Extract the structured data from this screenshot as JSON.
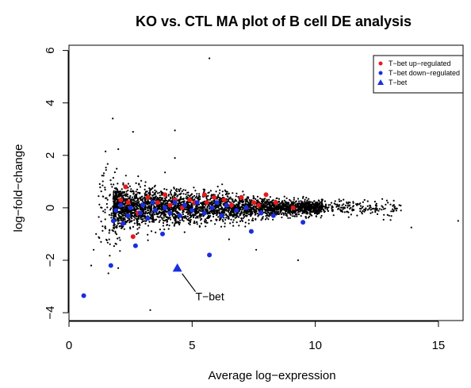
{
  "chart_data": {
    "type": "scatter",
    "title": "KO vs. CTL MA plot of B cell DE analysis",
    "xlabel": "Average log−expression",
    "ylabel": "log−fold−change",
    "xlim": [
      0,
      16
    ],
    "ylim": [
      -4.3,
      6.2
    ],
    "xticks": [
      0,
      5,
      10,
      15
    ],
    "yticks": [
      -4,
      -2,
      0,
      2,
      4,
      6
    ],
    "grid": false,
    "legend_position": "top-right",
    "legend": [
      {
        "label": "T−bet up−regulated",
        "color": "#e8191a",
        "marker": "circle"
      },
      {
        "label": "T−bet down−regulated",
        "color": "#1a2ee0",
        "marker": "circle"
      },
      {
        "label": "T−bet",
        "color": "#1a2ee0",
        "marker": "triangle"
      }
    ],
    "annotation": {
      "text": "T−bet",
      "x": 4.4,
      "y": -2.3,
      "text_x": 5.2,
      "text_y": -3.5
    },
    "background_points_note": "dense cloud of black points for all genes",
    "background_outliers": [
      [
        0.6,
        -3.4
      ],
      [
        3.3,
        -3.9
      ],
      [
        4.3,
        2.95
      ],
      [
        4.3,
        1.9
      ],
      [
        5.7,
        5.7
      ],
      [
        2.6,
        2.9
      ],
      [
        1.6,
        -2.5
      ],
      [
        1.0,
        -1.6
      ],
      [
        0.9,
        -2.2
      ],
      [
        1.3,
        -1.3
      ],
      [
        12.0,
        0.3
      ],
      [
        13.9,
        -0.75
      ],
      [
        15.8,
        -0.5
      ],
      [
        13.0,
        -0.3
      ],
      [
        7.6,
        -1.6
      ],
      [
        9.3,
        -2.0
      ],
      [
        2.0,
        -2.3
      ],
      [
        1.1,
        -1.0
      ],
      [
        6.5,
        -1.2
      ],
      [
        3.9,
        1.35
      ]
    ],
    "series": [
      {
        "name": "T−bet up−regulated",
        "color": "#e8191a",
        "marker": "circle",
        "points": [
          [
            2.1,
            0.3
          ],
          [
            2.3,
            0.8
          ],
          [
            2.4,
            0.2
          ],
          [
            2.6,
            -1.1
          ],
          [
            2.8,
            -0.2
          ],
          [
            3.2,
            0.4
          ],
          [
            3.6,
            0.2
          ],
          [
            3.9,
            0.5
          ],
          [
            4.1,
            0.1
          ],
          [
            4.3,
            0.3
          ],
          [
            4.6,
            0.0
          ],
          [
            4.9,
            0.3
          ],
          [
            5.1,
            0.2
          ],
          [
            5.5,
            0.5
          ],
          [
            5.6,
            0.2
          ],
          [
            5.9,
            0.4
          ],
          [
            6.3,
            0.3
          ],
          [
            6.6,
            0.1
          ],
          [
            7.0,
            0.4
          ],
          [
            7.5,
            0.2
          ],
          [
            7.7,
            0.1
          ],
          [
            8.0,
            0.5
          ],
          [
            8.4,
            0.2
          ],
          [
            9.1,
            0.0
          ]
        ]
      },
      {
        "name": "T−bet down−regulated",
        "color": "#1a2ee0",
        "marker": "circle",
        "points": [
          [
            0.6,
            -3.35
          ],
          [
            1.7,
            -2.2
          ],
          [
            1.8,
            -0.5
          ],
          [
            1.9,
            -0.1
          ],
          [
            2.1,
            0.1
          ],
          [
            2.2,
            -0.6
          ],
          [
            2.4,
            -0.3
          ],
          [
            2.5,
            0.0
          ],
          [
            2.7,
            -1.45
          ],
          [
            2.9,
            -0.2
          ],
          [
            3.0,
            0.1
          ],
          [
            3.2,
            -0.4
          ],
          [
            3.4,
            0.2
          ],
          [
            3.5,
            -0.1
          ],
          [
            3.8,
            -1.0
          ],
          [
            3.9,
            0.0
          ],
          [
            4.1,
            -0.2
          ],
          [
            4.3,
            0.2
          ],
          [
            4.5,
            -0.3
          ],
          [
            4.7,
            0.1
          ],
          [
            5.0,
            -0.1
          ],
          [
            5.2,
            0.2
          ],
          [
            5.5,
            -0.2
          ],
          [
            5.7,
            -1.8
          ],
          [
            5.8,
            0.0
          ],
          [
            6.0,
            0.2
          ],
          [
            6.2,
            -0.3
          ],
          [
            6.4,
            0.1
          ],
          [
            6.8,
            -0.1
          ],
          [
            7.2,
            0.0
          ],
          [
            7.4,
            -0.9
          ],
          [
            7.8,
            -0.2
          ],
          [
            8.3,
            -0.3
          ],
          [
            9.5,
            -0.55
          ]
        ]
      },
      {
        "name": "T−bet",
        "color": "#1a2ee0",
        "marker": "triangle",
        "points": [
          [
            4.4,
            -2.3
          ]
        ]
      }
    ]
  }
}
